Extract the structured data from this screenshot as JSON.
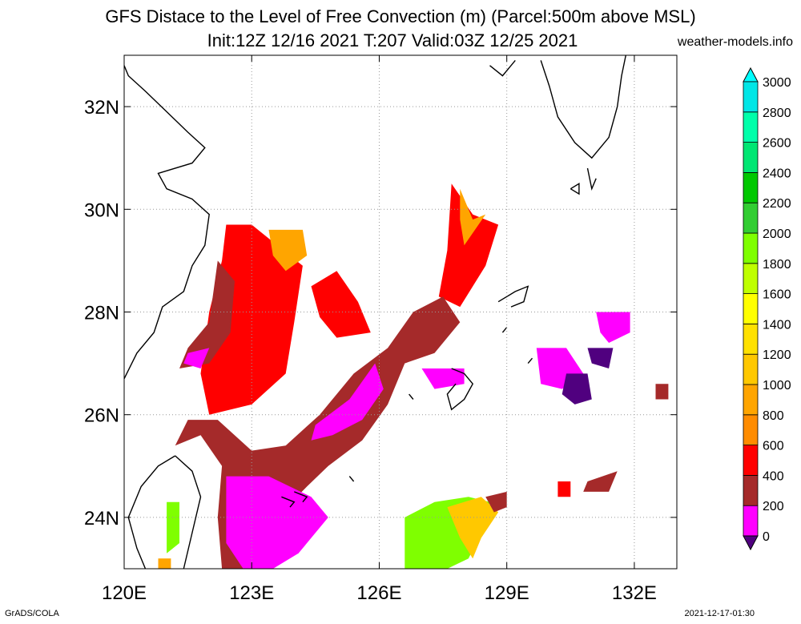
{
  "title": {
    "line1": "GFS Distace to the Level of Free Convection (m) (Parcel:500m above MSL)",
    "line2": "Init:12Z 12/16 2021 T:207 Valid:03Z 12/25 2021"
  },
  "credit": "weather-models.info",
  "footer": {
    "left": "GrADS/COLA",
    "right": "2021-12-17-01:30"
  },
  "map": {
    "lon_range": [
      120,
      133
    ],
    "lat_range": [
      23,
      33
    ],
    "x_ticks": [
      120,
      123,
      126,
      129,
      132
    ],
    "y_ticks": [
      24,
      26,
      28,
      30,
      32
    ],
    "x_tick_labels": [
      "120E",
      "123E",
      "126E",
      "129E",
      "132E"
    ],
    "y_tick_labels": [
      "24N",
      "26N",
      "28N",
      "30N",
      "32N"
    ],
    "grid": true,
    "grid_color": "#999999"
  },
  "colorbar": {
    "levels": [
      "0",
      "200",
      "400",
      "600",
      "800",
      "1000",
      "1200",
      "1400",
      "1600",
      "1800",
      "2000",
      "2200",
      "2400",
      "2600",
      "2800",
      "3000"
    ],
    "colors": [
      "#50007f",
      "#ff00ff",
      "#a52a2a",
      "#ff0000",
      "#ff8c00",
      "#ffa500",
      "#ffc800",
      "#ffe100",
      "#ffff00",
      "#bfff00",
      "#7fff00",
      "#32cd32",
      "#00c800",
      "#00e673",
      "#00ffaa",
      "#00e6e6",
      "#00ffff"
    ]
  },
  "fields": [
    {
      "color": "#ff0000",
      "lonlat": [
        [
          122.4,
          29.7
        ],
        [
          123.0,
          29.7
        ],
        [
          123.6,
          29.3
        ],
        [
          124.2,
          28.9
        ],
        [
          124.0,
          27.8
        ],
        [
          123.8,
          26.8
        ],
        [
          123.0,
          26.2
        ],
        [
          122.0,
          26.0
        ],
        [
          121.8,
          26.8
        ],
        [
          122.0,
          28.0
        ],
        [
          122.3,
          29.0
        ]
      ]
    },
    {
      "color": "#a52a2a",
      "lonlat": [
        [
          122.2,
          29.0
        ],
        [
          122.6,
          28.6
        ],
        [
          122.5,
          27.6
        ],
        [
          122.0,
          27.0
        ],
        [
          121.3,
          26.9
        ],
        [
          121.5,
          27.3
        ],
        [
          122.0,
          27.8
        ]
      ]
    },
    {
      "color": "#ffa500",
      "lonlat": [
        [
          123.4,
          29.6
        ],
        [
          124.2,
          29.6
        ],
        [
          124.3,
          29.1
        ],
        [
          123.8,
          28.8
        ],
        [
          123.5,
          29.1
        ]
      ]
    },
    {
      "color": "#ff00ff",
      "lonlat": [
        [
          121.5,
          27.2
        ],
        [
          122.0,
          27.3
        ],
        [
          121.8,
          26.9
        ],
        [
          121.4,
          27.0
        ]
      ]
    },
    {
      "color": "#ff0000",
      "lonlat": [
        [
          124.4,
          28.5
        ],
        [
          125.0,
          28.8
        ],
        [
          125.5,
          28.2
        ],
        [
          125.8,
          27.6
        ],
        [
          125.0,
          27.5
        ],
        [
          124.6,
          27.9
        ]
      ]
    },
    {
      "color": "#ff0000",
      "lonlat": [
        [
          127.7,
          30.5
        ],
        [
          128.2,
          29.9
        ],
        [
          128.8,
          29.7
        ],
        [
          128.5,
          28.9
        ],
        [
          127.9,
          28.1
        ],
        [
          127.4,
          28.3
        ],
        [
          127.6,
          29.2
        ]
      ]
    },
    {
      "color": "#ffa500",
      "lonlat": [
        [
          127.9,
          30.4
        ],
        [
          128.2,
          29.8
        ],
        [
          128.5,
          29.9
        ],
        [
          128.0,
          29.3
        ],
        [
          127.9,
          29.8
        ]
      ]
    },
    {
      "color": "#a52a2a",
      "lonlat": [
        [
          126.8,
          28.0
        ],
        [
          127.5,
          28.3
        ],
        [
          127.9,
          27.8
        ],
        [
          127.3,
          27.2
        ],
        [
          126.6,
          27.0
        ],
        [
          126.2,
          26.2
        ],
        [
          125.6,
          25.5
        ],
        [
          124.8,
          25.0
        ],
        [
          124.3,
          24.6
        ],
        [
          123.7,
          24.1
        ],
        [
          123.6,
          23.6
        ],
        [
          123.0,
          23.0
        ],
        [
          122.3,
          23.0
        ],
        [
          122.2,
          24.0
        ],
        [
          122.3,
          25.0
        ],
        [
          121.8,
          25.6
        ],
        [
          121.2,
          25.4
        ],
        [
          121.5,
          25.9
        ],
        [
          122.2,
          25.9
        ],
        [
          123.0,
          25.3
        ],
        [
          123.8,
          25.4
        ],
        [
          124.6,
          26.0
        ],
        [
          125.4,
          26.8
        ],
        [
          126.2,
          27.3
        ]
      ]
    },
    {
      "color": "#ff00ff",
      "lonlat": [
        [
          122.4,
          24.8
        ],
        [
          123.4,
          24.8
        ],
        [
          124.4,
          24.4
        ],
        [
          124.8,
          24.0
        ],
        [
          124.1,
          23.3
        ],
        [
          123.5,
          23.0
        ],
        [
          122.8,
          23.0
        ],
        [
          122.4,
          23.5
        ]
      ]
    },
    {
      "color": "#ff00ff",
      "lonlat": [
        [
          125.3,
          26.3
        ],
        [
          125.9,
          27.0
        ],
        [
          126.1,
          26.5
        ],
        [
          125.6,
          25.9
        ],
        [
          124.9,
          25.6
        ],
        [
          124.4,
          25.5
        ],
        [
          124.5,
          25.8
        ]
      ]
    },
    {
      "color": "#ff00ff",
      "lonlat": [
        [
          127.0,
          26.9
        ],
        [
          128.0,
          26.9
        ],
        [
          128.0,
          26.6
        ],
        [
          127.3,
          26.5
        ]
      ]
    },
    {
      "color": "#ff00ff",
      "lonlat": [
        [
          129.7,
          27.3
        ],
        [
          130.4,
          27.3
        ],
        [
          130.8,
          26.8
        ],
        [
          130.3,
          26.5
        ],
        [
          129.8,
          26.6
        ]
      ]
    },
    {
      "color": "#50007f",
      "lonlat": [
        [
          130.4,
          26.8
        ],
        [
          130.9,
          26.8
        ],
        [
          131.0,
          26.3
        ],
        [
          130.6,
          26.2
        ],
        [
          130.3,
          26.4
        ]
      ]
    },
    {
      "color": "#ff00ff",
      "lonlat": [
        [
          131.1,
          28.0
        ],
        [
          131.9,
          28.0
        ],
        [
          131.9,
          27.6
        ],
        [
          131.4,
          27.4
        ],
        [
          131.2,
          27.6
        ]
      ]
    },
    {
      "color": "#50007f",
      "lonlat": [
        [
          130.9,
          27.3
        ],
        [
          131.5,
          27.3
        ],
        [
          131.4,
          26.9
        ],
        [
          131.0,
          27.0
        ]
      ]
    },
    {
      "color": "#a52a2a",
      "lonlat": [
        [
          130.9,
          24.7
        ],
        [
          131.6,
          24.9
        ],
        [
          131.4,
          24.5
        ],
        [
          130.8,
          24.5
        ]
      ]
    },
    {
      "color": "#7fff00",
      "lonlat": [
        [
          126.6,
          24.0
        ],
        [
          127.3,
          24.3
        ],
        [
          128.1,
          24.4
        ],
        [
          128.6,
          24.3
        ],
        [
          128.4,
          23.7
        ],
        [
          128.1,
          23.2
        ],
        [
          127.6,
          23.0
        ],
        [
          126.6,
          23.0
        ]
      ]
    },
    {
      "color": "#ffc800",
      "lonlat": [
        [
          127.6,
          24.2
        ],
        [
          128.4,
          24.4
        ],
        [
          128.8,
          24.1
        ],
        [
          128.4,
          23.6
        ],
        [
          128.2,
          23.2
        ],
        [
          127.9,
          23.6
        ]
      ]
    },
    {
      "color": "#a52a2a",
      "lonlat": [
        [
          128.5,
          24.4
        ],
        [
          129.0,
          24.5
        ],
        [
          129.0,
          24.2
        ],
        [
          128.7,
          24.1
        ]
      ]
    },
    {
      "color": "#7fff00",
      "lonlat": [
        [
          121.0,
          24.3
        ],
        [
          121.3,
          24.3
        ],
        [
          121.3,
          23.5
        ],
        [
          121.0,
          23.3
        ]
      ]
    },
    {
      "color": "#ffa500",
      "lonlat": [
        [
          120.8,
          23.2
        ],
        [
          121.1,
          23.2
        ],
        [
          121.1,
          23.0
        ],
        [
          120.8,
          23.0
        ]
      ]
    },
    {
      "color": "#a52a2a",
      "lonlat": [
        [
          132.5,
          26.6
        ],
        [
          132.8,
          26.6
        ],
        [
          132.8,
          26.3
        ],
        [
          132.5,
          26.3
        ]
      ]
    },
    {
      "color": "#ff0000",
      "lonlat": [
        [
          130.2,
          24.7
        ],
        [
          130.5,
          24.7
        ],
        [
          130.5,
          24.4
        ],
        [
          130.2,
          24.4
        ]
      ]
    }
  ],
  "coastlines": [
    [
      [
        120.0,
        26.7
      ],
      [
        120.3,
        27.2
      ],
      [
        120.7,
        27.6
      ],
      [
        120.9,
        28.1
      ],
      [
        121.4,
        28.4
      ],
      [
        121.6,
        28.9
      ],
      [
        121.9,
        29.3
      ],
      [
        122.0,
        29.9
      ],
      [
        121.6,
        30.2
      ],
      [
        121.0,
        30.4
      ],
      [
        120.8,
        30.7
      ],
      [
        121.6,
        30.9
      ],
      [
        121.9,
        31.2
      ],
      [
        121.5,
        31.5
      ],
      [
        121.0,
        31.9
      ],
      [
        120.5,
        32.3
      ],
      [
        120.1,
        32.6
      ],
      [
        120.0,
        32.8
      ]
    ],
    [
      [
        121.2,
        25.2
      ],
      [
        121.6,
        24.9
      ],
      [
        121.8,
        24.4
      ],
      [
        121.6,
        23.7
      ],
      [
        121.4,
        23.0
      ]
    ],
    [
      [
        120.5,
        23.0
      ],
      [
        120.3,
        23.4
      ],
      [
        120.1,
        24.0
      ],
      [
        120.4,
        24.6
      ],
      [
        120.8,
        25.0
      ],
      [
        121.2,
        25.2
      ]
    ],
    [
      [
        129.8,
        32.9
      ],
      [
        130.0,
        32.4
      ],
      [
        130.2,
        31.8
      ],
      [
        130.6,
        31.3
      ],
      [
        131.0,
        31.0
      ],
      [
        131.4,
        31.4
      ],
      [
        131.6,
        32.0
      ],
      [
        131.7,
        32.6
      ],
      [
        131.8,
        33.0
      ]
    ],
    [
      [
        128.6,
        32.8
      ],
      [
        128.9,
        32.6
      ],
      [
        129.2,
        32.9
      ]
    ],
    [
      [
        130.5,
        30.4
      ],
      [
        130.7,
        30.5
      ],
      [
        130.7,
        30.3
      ],
      [
        130.5,
        30.4
      ]
    ],
    [
      [
        130.9,
        30.8
      ],
      [
        131.0,
        30.4
      ],
      [
        131.1,
        30.6
      ]
    ],
    [
      [
        128.8,
        28.2
      ],
      [
        129.2,
        28.4
      ],
      [
        129.5,
        28.5
      ],
      [
        129.4,
        28.2
      ],
      [
        129.1,
        28.1
      ]
    ],
    [
      [
        127.7,
        26.9
      ],
      [
        128.0,
        26.8
      ],
      [
        128.2,
        26.6
      ],
      [
        128.0,
        26.3
      ],
      [
        127.7,
        26.1
      ],
      [
        127.6,
        26.4
      ],
      [
        127.8,
        26.6
      ]
    ],
    [
      [
        124.0,
        24.5
      ],
      [
        124.3,
        24.4
      ],
      [
        124.2,
        24.3
      ]
    ],
    [
      [
        123.7,
        24.4
      ],
      [
        124.0,
        24.3
      ],
      [
        123.9,
        24.2
      ]
    ],
    [
      [
        125.3,
        24.8
      ],
      [
        125.4,
        24.7
      ]
    ],
    [
      [
        126.7,
        26.4
      ],
      [
        126.8,
        26.3
      ]
    ],
    [
      [
        128.9,
        27.6
      ],
      [
        129.0,
        27.7
      ]
    ],
    [
      [
        129.5,
        27.0
      ],
      [
        129.6,
        27.1
      ]
    ]
  ]
}
